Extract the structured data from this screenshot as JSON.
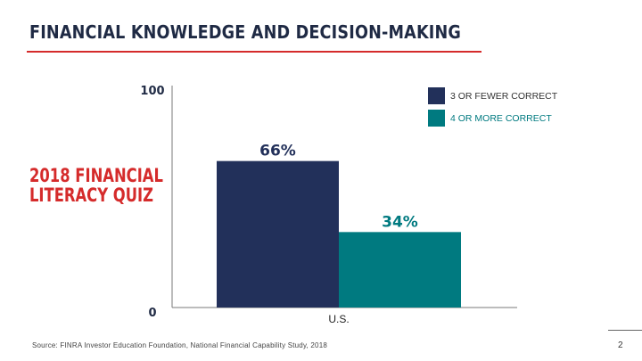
{
  "page": {
    "title": "FINANCIAL KNOWLEDGE AND DECISION-MAKING",
    "side_label_line1": "2018 FINANCIAL",
    "side_label_line2": "LITERACY QUIZ",
    "source": "Source: FINRA Investor Education Foundation, National Financial Capability Study, 2018",
    "page_number": "2"
  },
  "colors": {
    "accent_red": "#d52b2b",
    "series_navy": "#22305a",
    "series_teal": "#007a80"
  },
  "chart_data": {
    "type": "bar",
    "categories": [
      "U.S."
    ],
    "series": [
      {
        "name": "3 OR FEWER CORRECT",
        "values": [
          66
        ],
        "label": "66%",
        "color": "#22305a"
      },
      {
        "name": "4 OR MORE CORRECT",
        "values": [
          34
        ],
        "label": "34%",
        "color": "#007a80"
      }
    ],
    "ylim": [
      0,
      100
    ],
    "yticks": [
      "0",
      "100"
    ],
    "grid": false,
    "legend_position": "top-right"
  }
}
